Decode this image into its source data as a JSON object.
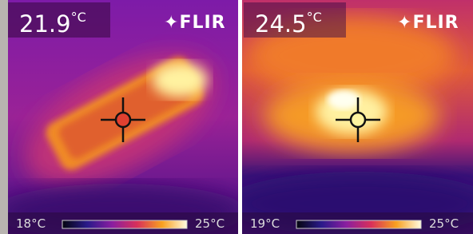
{
  "panels": [
    {
      "reading": "21.9",
      "unit": "°C",
      "brand": "FLIR",
      "scale_min": "18°C",
      "scale_max": "25°C"
    },
    {
      "reading": "24.5",
      "unit": "°C",
      "brand": "FLIR",
      "scale_min": "19°C",
      "scale_max": "25°C"
    }
  ]
}
